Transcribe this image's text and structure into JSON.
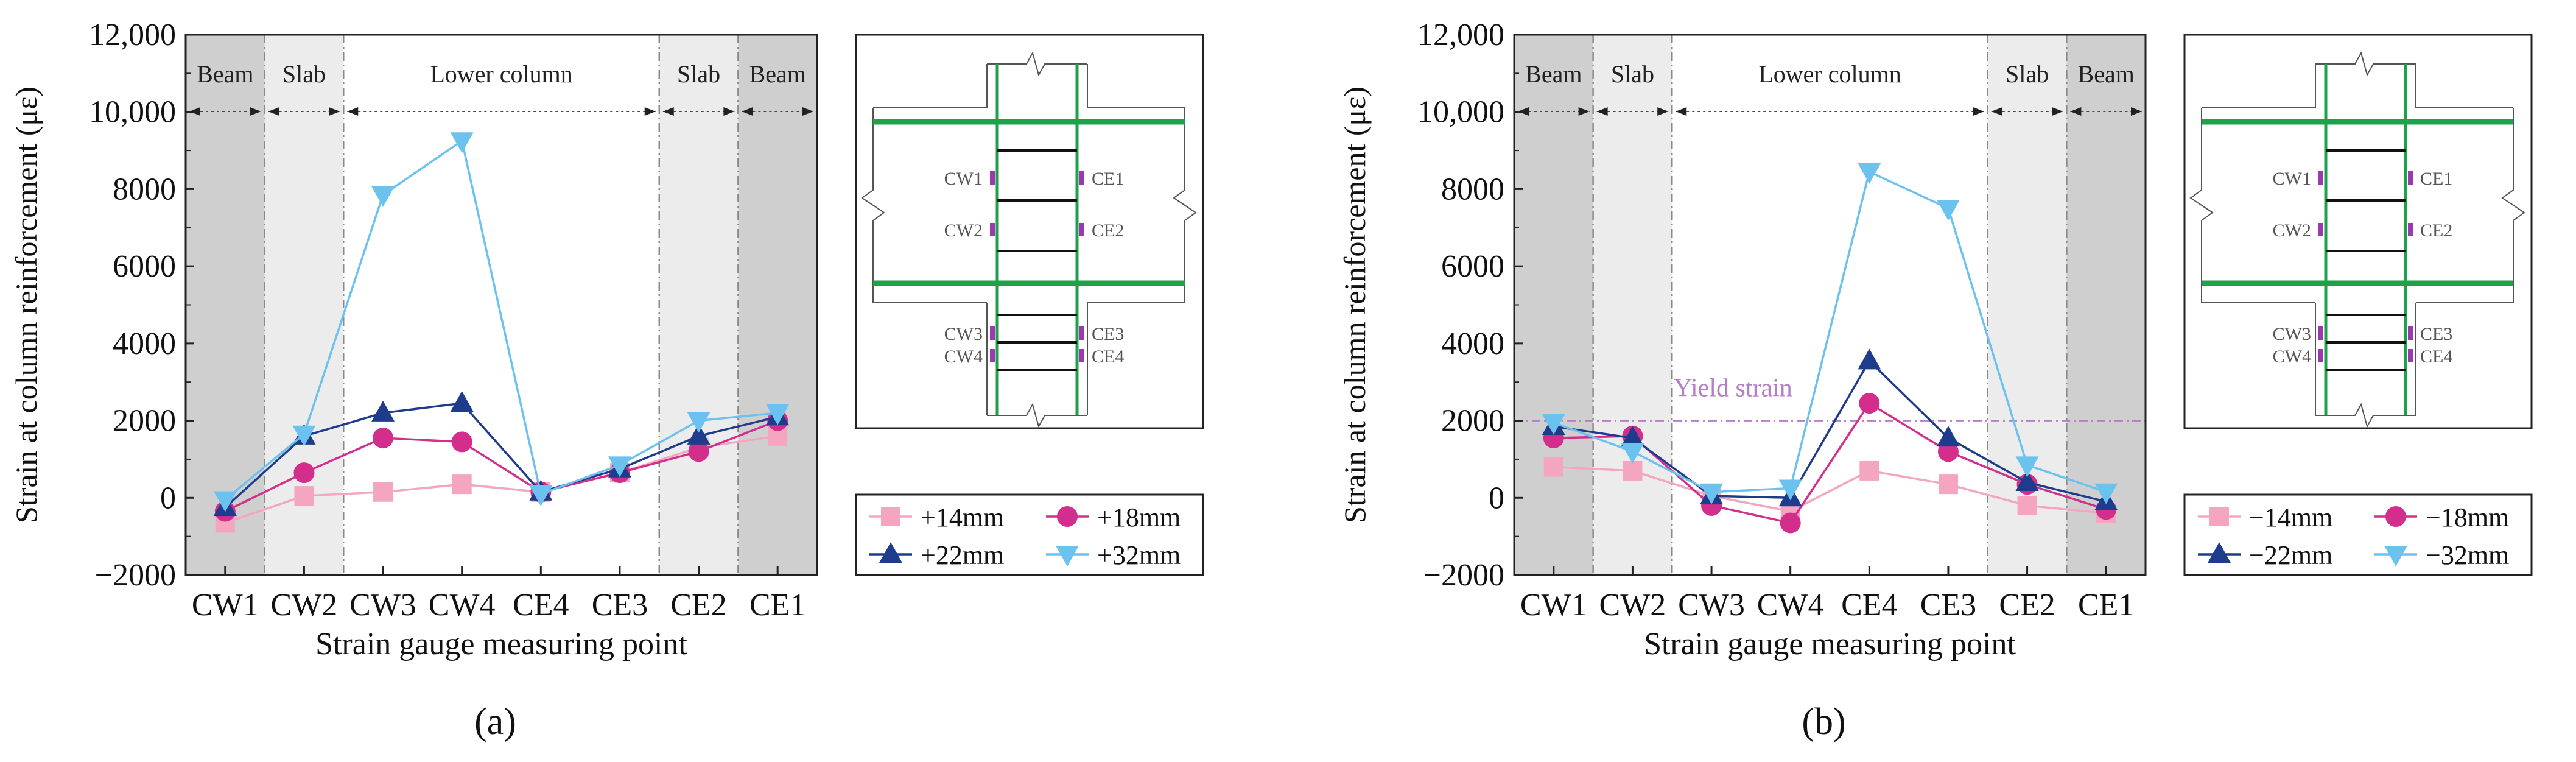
{
  "chart_data": [
    {
      "type": "line",
      "panel_label": "(a)",
      "ylabel": "Strain at column reinforcement (με)",
      "xlabel": "Strain gauge measuring point",
      "categories": [
        "CW1",
        "CW2",
        "CW3",
        "CW4",
        "CE4",
        "CE3",
        "CE2",
        "CE1"
      ],
      "ylim": [
        -2000,
        12000
      ],
      "yticks": [
        "−2000",
        "0",
        "2000",
        "4000",
        "6000",
        "8000",
        "10,000",
        "12,000"
      ],
      "grid": false,
      "regions": [
        "Beam",
        "Slab",
        "Lower column",
        "Slab",
        "Beam"
      ],
      "legend_position": "bottom-right",
      "series": [
        {
          "name": "+14mm",
          "marker": "square",
          "color": "#f4a6c0",
          "values": [
            -650,
            50,
            150,
            350,
            150,
            650,
            1300,
            1600
          ]
        },
        {
          "name": "+18mm",
          "marker": "circle",
          "color": "#d42e8c",
          "values": [
            -350,
            650,
            1550,
            1450,
            150,
            650,
            1200,
            2000
          ]
        },
        {
          "name": "+22mm",
          "marker": "triangle-up",
          "color": "#1f3b8c",
          "values": [
            -250,
            1600,
            2200,
            2450,
            150,
            750,
            1600,
            2100
          ]
        },
        {
          "name": "+32mm",
          "marker": "triangle-down",
          "color": "#6cc2ee",
          "values": [
            -50,
            1650,
            7850,
            9250,
            100,
            850,
            2000,
            2200
          ]
        }
      ],
      "inset": {
        "gauges_left": [
          "CW1",
          "CW2",
          "CW3",
          "CW4"
        ],
        "gauges_right": [
          "CE1",
          "CE2",
          "CE3",
          "CE4"
        ]
      }
    },
    {
      "type": "line",
      "panel_label": "(b)",
      "ylabel": "Strain at column reinforcement (με)",
      "xlabel": "Strain gauge measuring point",
      "categories": [
        "CW1",
        "CW2",
        "CW3",
        "CW4",
        "CE4",
        "CE3",
        "CE2",
        "CE1"
      ],
      "ylim": [
        -2000,
        12000
      ],
      "yticks": [
        "−2000",
        "0",
        "2000",
        "4000",
        "6000",
        "8000",
        "10,000",
        "12,000"
      ],
      "grid": false,
      "regions": [
        "Beam",
        "Slab",
        "Lower column",
        "Slab",
        "Beam"
      ],
      "reference_line": {
        "label": "Yield strain",
        "value": 2000,
        "color": "#b57fc7"
      },
      "legend_position": "bottom-right",
      "series": [
        {
          "name": "−14mm",
          "marker": "square",
          "color": "#f4a6c0",
          "values": [
            800,
            700,
            50,
            -350,
            700,
            350,
            -200,
            -400
          ]
        },
        {
          "name": "−18mm",
          "marker": "circle",
          "color": "#d42e8c",
          "values": [
            1550,
            1600,
            -200,
            -650,
            2450,
            1200,
            350,
            -300
          ]
        },
        {
          "name": "−22mm",
          "marker": "triangle-up",
          "color": "#1f3b8c",
          "values": [
            1850,
            1550,
            50,
            0,
            3550,
            1550,
            400,
            -100
          ]
        },
        {
          "name": "−32mm",
          "marker": "triangle-down",
          "color": "#6cc2ee",
          "values": [
            1950,
            1200,
            150,
            250,
            8450,
            7500,
            850,
            150
          ]
        }
      ],
      "inset": {
        "gauges_left": [
          "CW1",
          "CW2",
          "CW3",
          "CW4"
        ],
        "gauges_right": [
          "CE1",
          "CE2",
          "CE3",
          "CE4"
        ]
      }
    }
  ]
}
